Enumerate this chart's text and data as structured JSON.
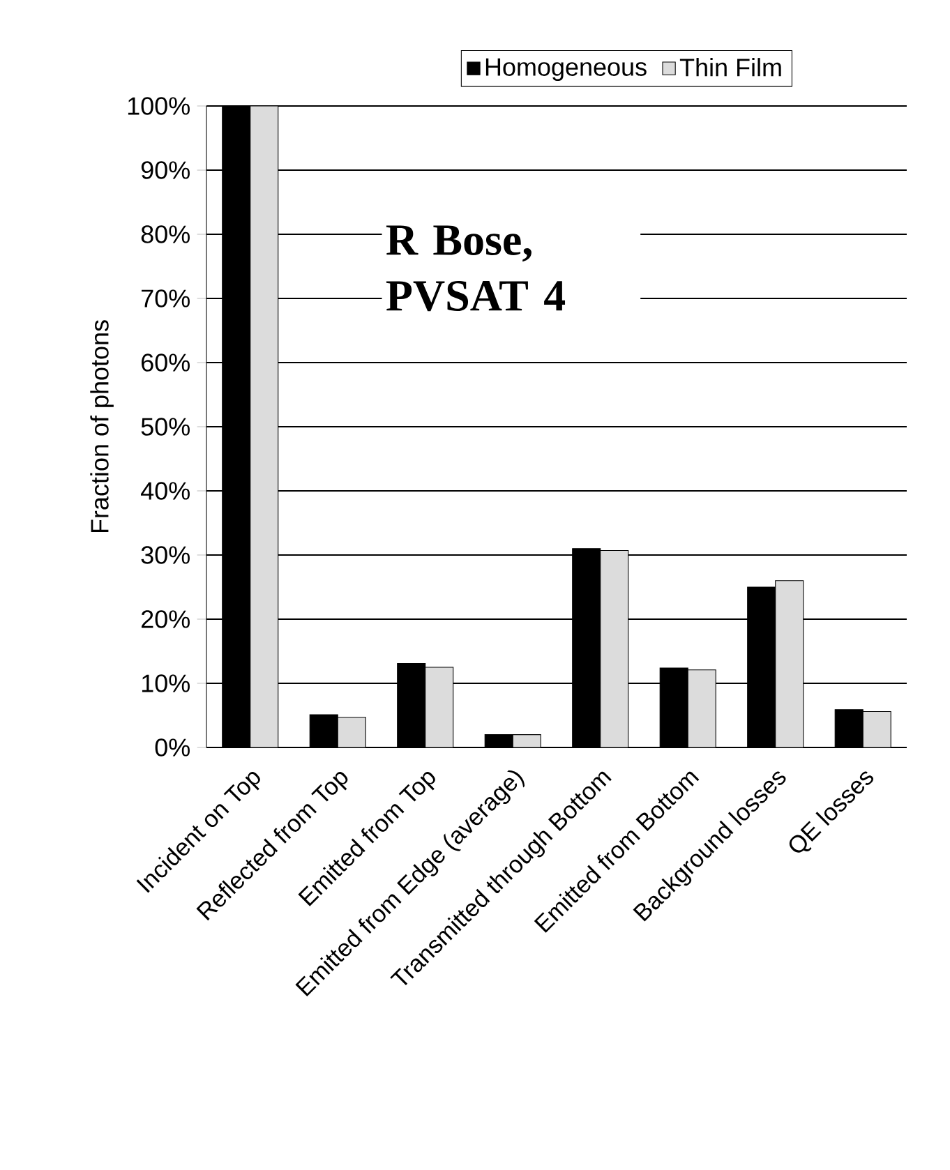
{
  "chart_data": {
    "type": "bar",
    "categories": [
      "Incident on Top",
      "Reflected from Top",
      "Emitted from Top",
      "Emitted from Edge (average)",
      "Transmitted through Bottom",
      "Emitted from Bottom",
      "Background losses",
      "QE losses"
    ],
    "series": [
      {
        "name": "Homogeneous",
        "color": "#000000",
        "values": [
          100,
          5.1,
          13.1,
          2.0,
          31.0,
          12.4,
          25.0,
          5.9
        ]
      },
      {
        "name": "Thin Film",
        "color": "#dcdcdc",
        "values": [
          100,
          4.7,
          12.5,
          2.0,
          30.7,
          12.1,
          26.0,
          5.6
        ]
      }
    ],
    "ylabel": "Fraction of photons",
    "ylim": [
      0,
      100
    ],
    "yticks": [
      {
        "value": 0,
        "label": "0%"
      },
      {
        "value": 10,
        "label": "10%"
      },
      {
        "value": 20,
        "label": "20%"
      },
      {
        "value": 30,
        "label": "30%"
      },
      {
        "value": 40,
        "label": "40%"
      },
      {
        "value": 50,
        "label": "50%"
      },
      {
        "value": 60,
        "label": "60%"
      },
      {
        "value": 70,
        "label": "70%"
      },
      {
        "value": 80,
        "label": "80%"
      },
      {
        "value": 90,
        "label": "90%"
      },
      {
        "value": 100,
        "label": "100%"
      }
    ],
    "grid": "y",
    "legend": "top",
    "annotations": [
      "R Bose, PVSAT 4"
    ]
  }
}
